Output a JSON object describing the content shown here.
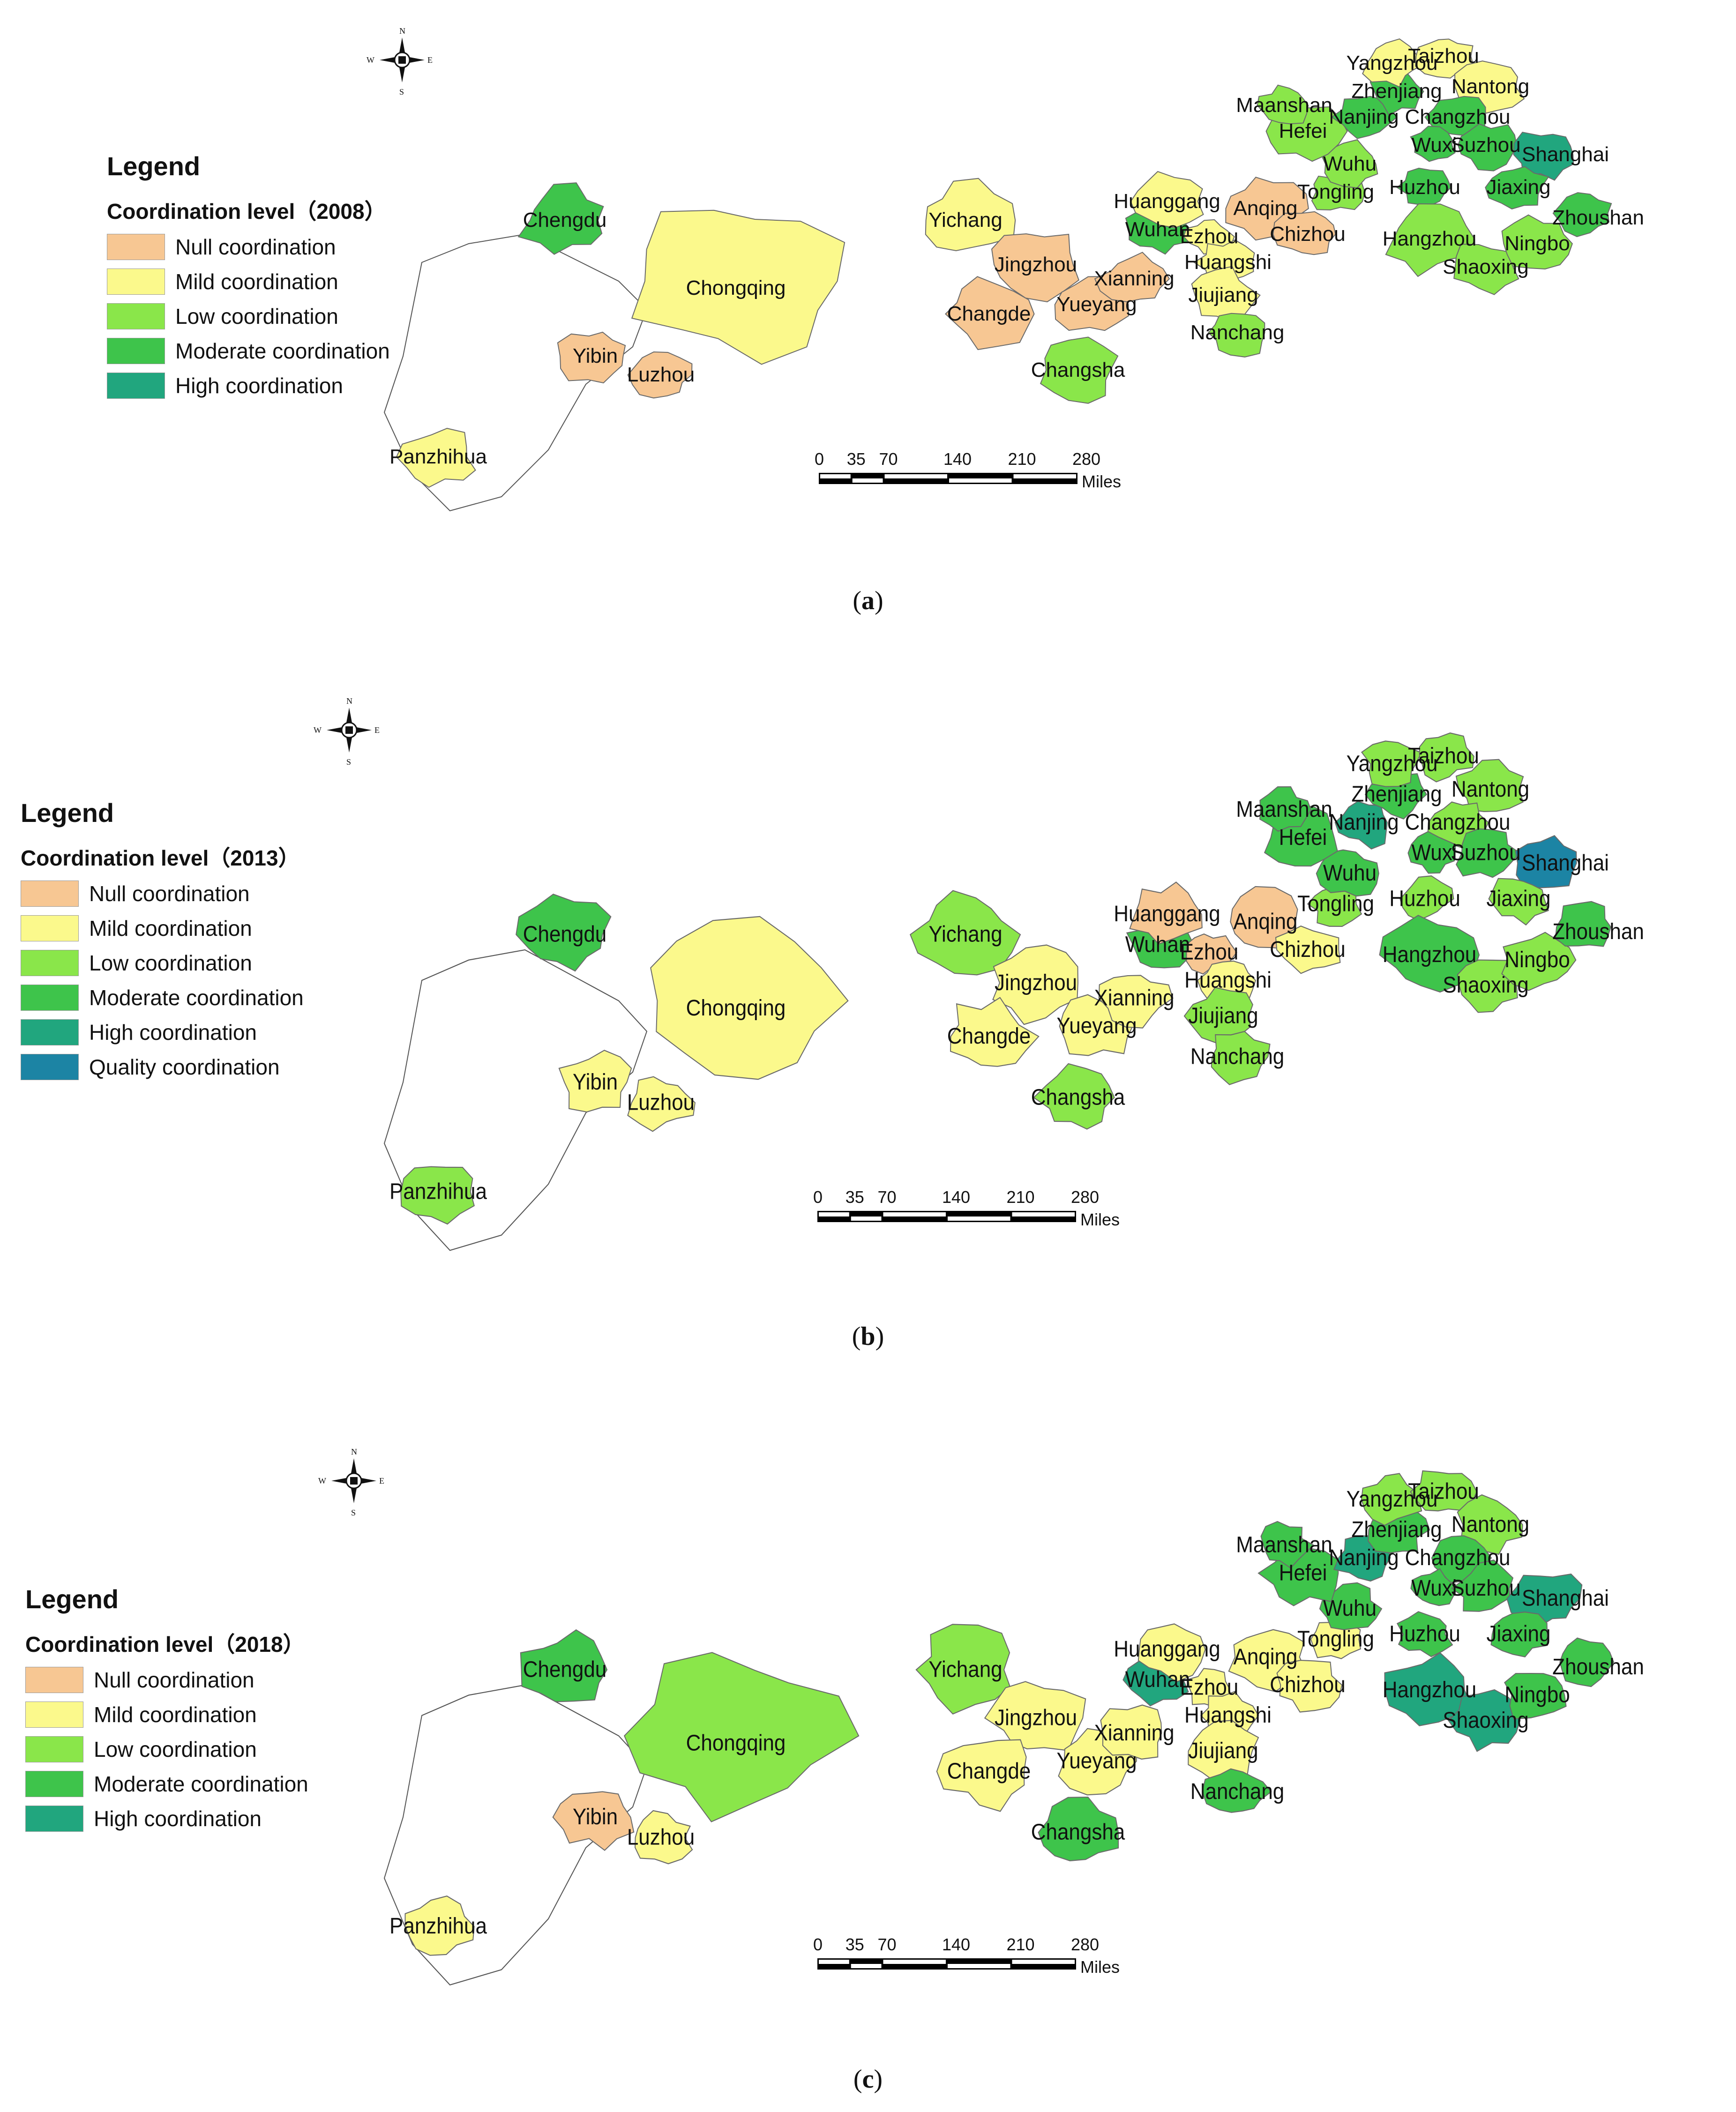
{
  "colors": {
    "Null coordination": "#f7c793",
    "Mild coordination": "#fbf98c",
    "Low coordination": "#8ae64a",
    "Moderate coordination": "#3ec44b",
    "High coordination": "#21a67e",
    "Quality coordination": "#1c84a4",
    "Unclassified": "#ffffff"
  },
  "panels": [
    {
      "id": "a",
      "caption": "a",
      "legend_title": "Legend",
      "legend_subtitle": "Coordination level（2008）",
      "legend_items": [
        "Null coordination",
        "Mild coordination",
        "Low coordination",
        "Moderate coordination",
        "High coordination"
      ],
      "compass": {
        "n": "N",
        "s": "S",
        "e": "E",
        "w": "W"
      },
      "scale_labels": [
        "0",
        "35",
        "70",
        "140",
        "210",
        "280"
      ],
      "scale_unit": "Miles",
      "cities": {
        "Chengdu": "Moderate coordination",
        "Chongqing": "Mild coordination",
        "Yibin": "Null coordination",
        "Luzhou": "Null coordination",
        "Panzhihua": "Mild coordination",
        "Yichang": "Mild coordination",
        "Jingzhou": "Null coordination",
        "Changde": "Null coordination",
        "Yueyang": "Null coordination",
        "Xianning": "Null coordination",
        "Changsha": "Low coordination",
        "Wuhan": "Moderate coordination",
        "Huanggang": "Mild coordination",
        "Ezhou": "Mild coordination",
        "Huangshi": "Mild coordination",
        "Jiujiang": "Mild coordination",
        "Nanchang": "Low coordination",
        "Anqing": "Null coordination",
        "Chizhou": "Null coordination",
        "Tongling": "Low coordination",
        "Wuhu": "Low coordination",
        "Hefei": "Low coordination",
        "Maanshan": "Low coordination",
        "Nanjing": "Moderate coordination",
        "Zhenjiang": "Moderate coordination",
        "Yangzhou": "Mild coordination",
        "Taizhou": "Mild coordination",
        "Nantong": "Mild coordination",
        "Changzhou": "Moderate coordination",
        "Wuxi": "Moderate coordination",
        "Suzhou": "Moderate coordination",
        "Shanghai": "High coordination",
        "Huzhou": "Moderate coordination",
        "Jiaxing": "Moderate coordination",
        "Hangzhou": "Low coordination",
        "Shaoxing": "Low coordination",
        "Ningbo": "Low coordination",
        "Zhoushan": "Moderate coordination"
      }
    },
    {
      "id": "b",
      "caption": "b",
      "legend_title": "Legend",
      "legend_subtitle": "Coordination level（2013）",
      "legend_items": [
        "Null coordination",
        "Mild coordination",
        "Low coordination",
        "Moderate coordination",
        "High coordination",
        "Quality coordination"
      ],
      "compass": {
        "n": "N",
        "s": "S",
        "e": "E",
        "w": "W"
      },
      "scale_labels": [
        "0",
        "35",
        "70",
        "140",
        "210",
        "280"
      ],
      "scale_unit": "Miles",
      "cities": {
        "Chengdu": "Moderate coordination",
        "Chongqing": "Mild coordination",
        "Yibin": "Mild coordination",
        "Luzhou": "Mild coordination",
        "Panzhihua": "Low coordination",
        "Yichang": "Low coordination",
        "Jingzhou": "Mild coordination",
        "Changde": "Mild coordination",
        "Yueyang": "Mild coordination",
        "Xianning": "Mild coordination",
        "Changsha": "Low coordination",
        "Wuhan": "Moderate coordination",
        "Huanggang": "Null coordination",
        "Ezhou": "Null coordination",
        "Huangshi": "Mild coordination",
        "Jiujiang": "Low coordination",
        "Nanchang": "Low coordination",
        "Anqing": "Null coordination",
        "Chizhou": "Mild coordination",
        "Tongling": "Low coordination",
        "Wuhu": "Moderate coordination",
        "Hefei": "Moderate coordination",
        "Maanshan": "Moderate coordination",
        "Nanjing": "High coordination",
        "Zhenjiang": "Moderate coordination",
        "Yangzhou": "Low coordination",
        "Taizhou": "Low coordination",
        "Nantong": "Low coordination",
        "Changzhou": "Low coordination",
        "Wuxi": "Moderate coordination",
        "Suzhou": "Moderate coordination",
        "Shanghai": "Quality coordination",
        "Huzhou": "Low coordination",
        "Jiaxing": "Low coordination",
        "Hangzhou": "Moderate coordination",
        "Shaoxing": "Low coordination",
        "Ningbo": "Low coordination",
        "Zhoushan": "Moderate coordination"
      }
    },
    {
      "id": "c",
      "caption": "c",
      "legend_title": "Legend",
      "legend_subtitle": "Coordination level（2018）",
      "legend_items": [
        "Null coordination",
        "Mild coordination",
        "Low coordination",
        "Moderate coordination",
        "High coordination"
      ],
      "compass": {
        "n": "N",
        "s": "S",
        "e": "E",
        "w": "W"
      },
      "scale_labels": [
        "0",
        "35",
        "70",
        "140",
        "210",
        "280"
      ],
      "scale_unit": "Miles",
      "cities": {
        "Chengdu": "Moderate coordination",
        "Chongqing": "Low coordination",
        "Yibin": "Null coordination",
        "Luzhou": "Mild coordination",
        "Panzhihua": "Mild coordination",
        "Yichang": "Low coordination",
        "Jingzhou": "Mild coordination",
        "Changde": "Mild coordination",
        "Yueyang": "Mild coordination",
        "Xianning": "Mild coordination",
        "Changsha": "Moderate coordination",
        "Wuhan": "High coordination",
        "Huanggang": "Mild coordination",
        "Ezhou": "Mild coordination",
        "Huangshi": "Mild coordination",
        "Jiujiang": "Mild coordination",
        "Nanchang": "Moderate coordination",
        "Anqing": "Mild coordination",
        "Chizhou": "Mild coordination",
        "Tongling": "Mild coordination",
        "Wuhu": "Moderate coordination",
        "Hefei": "Moderate coordination",
        "Maanshan": "Moderate coordination",
        "Nanjing": "High coordination",
        "Zhenjiang": "Moderate coordination",
        "Yangzhou": "Low coordination",
        "Taizhou": "Low coordination",
        "Nantong": "Low coordination",
        "Changzhou": "Moderate coordination",
        "Wuxi": "Moderate coordination",
        "Suzhou": "Moderate coordination",
        "Shanghai": "High coordination",
        "Huzhou": "Moderate coordination",
        "Jiaxing": "Moderate coordination",
        "Hangzhou": "High coordination",
        "Shaoxing": "High coordination",
        "Ningbo": "Moderate coordination",
        "Zhoushan": "Moderate coordination"
      }
    }
  ]
}
